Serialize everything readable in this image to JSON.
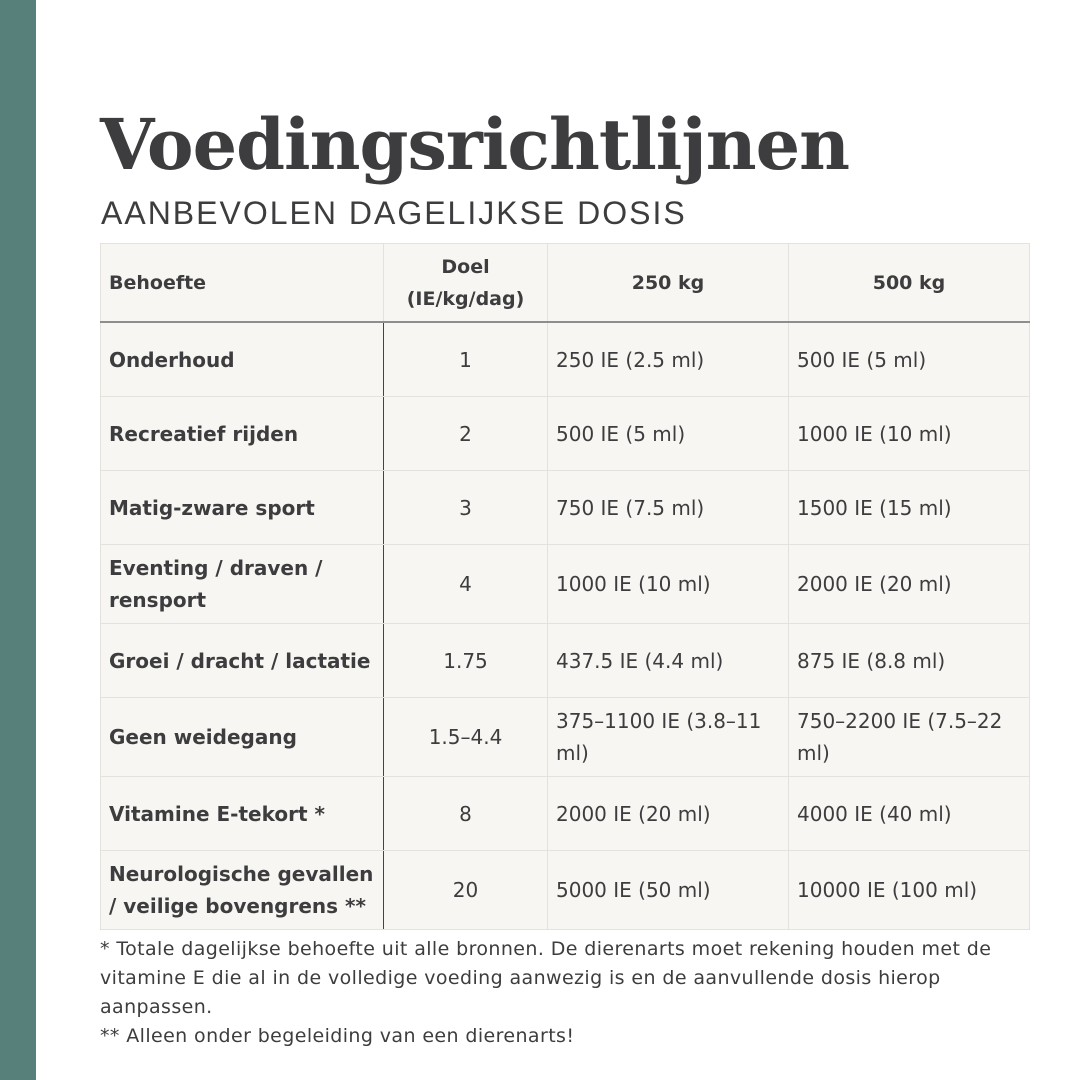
{
  "title": "Voedingsrichtlijnen",
  "subtitle": "AANBEVOLEN DAGELIJKSE DOSIS",
  "colors": {
    "accent_strip": "#568079",
    "table_bg": "#f7f6f2"
  },
  "table": {
    "headers": [
      "Behoefte",
      "Doel (IE/kg/dag)",
      "250 kg",
      "500 kg"
    ],
    "rows": [
      [
        "Onderhoud",
        "1",
        "250 IE (2.5 ml)",
        "500 IE (5 ml)"
      ],
      [
        "Recreatief rijden",
        "2",
        "500 IE (5 ml)",
        "1000 IE (10 ml)"
      ],
      [
        "Matig-zware sport",
        "3",
        "750 IE (7.5 ml)",
        "1500 IE (15 ml)"
      ],
      [
        "Eventing / draven / rensport",
        "4",
        "1000 IE (10 ml)",
        "2000 IE (20 ml)"
      ],
      [
        "Groei / dracht / lactatie",
        "1.75",
        "437.5 IE (4.4 ml)",
        "875 IE (8.8 ml)"
      ],
      [
        "Geen weidegang",
        "1.5–4.4",
        "375–1100 IE (3.8–11 ml)",
        "750–2200 IE (7.5–22 ml)"
      ],
      [
        "Vitamine E-tekort *",
        "8",
        "2000 IE (20 ml)",
        "4000 IE (40 ml)"
      ],
      [
        "Neurologische gevallen / veilige bovengrens **",
        "20",
        "5000 IE (50 ml)",
        "10000 IE (100 ml)"
      ]
    ]
  },
  "notes": [
    "* Totale dagelijkse behoefte uit alle bronnen. De dierenarts moet rekening houden met de vitamine E die al in de volledige voeding aanwezig is en de aanvullende dosis hierop aanpassen.",
    "** Alleen onder begeleiding van een dierenarts!"
  ]
}
